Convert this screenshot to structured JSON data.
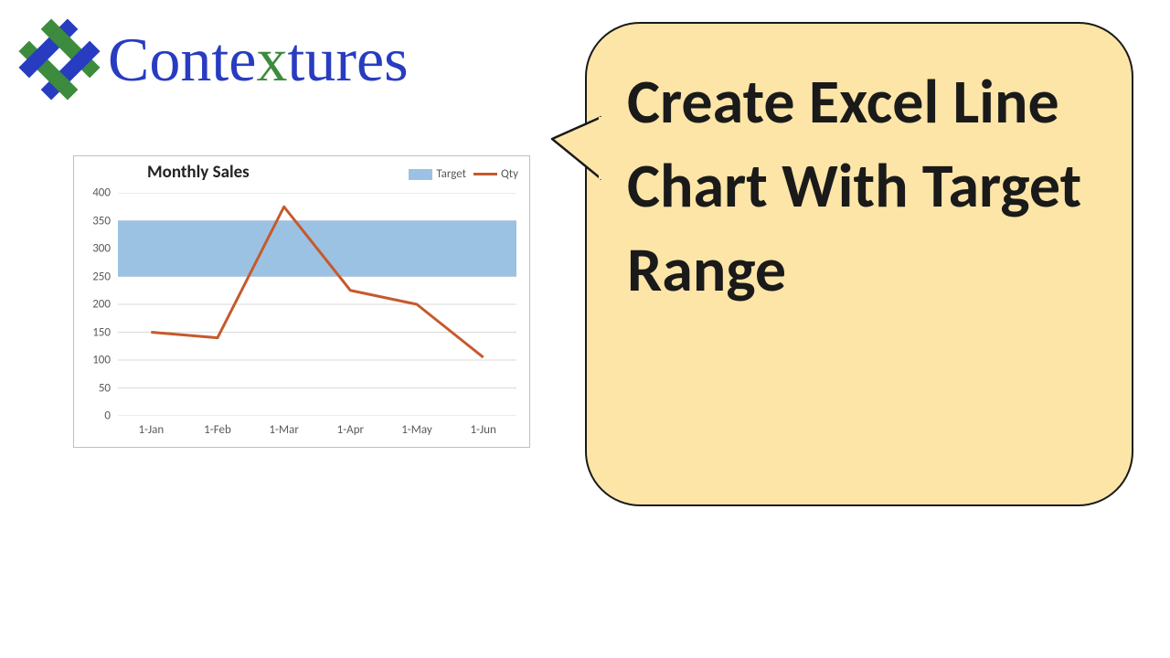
{
  "logo": {
    "text_before_x": "Conte",
    "text_x": "x",
    "text_after_x": "tures",
    "text_color": "#283cc1",
    "x_color": "#3d8b3d",
    "icon_blue": "#283cc1",
    "icon_green": "#3d8b3d"
  },
  "bubble": {
    "text": "Create Excel Line Chart With Target Range",
    "bg": "#fce5a7",
    "border": "#1a1a1a",
    "fontsize_pt": 50
  },
  "chart": {
    "type": "line_with_band",
    "title": "Monthly Sales",
    "title_fontsize": 19,
    "categories": [
      "1-Jan",
      "1-Feb",
      "1-Mar",
      "1-Apr",
      "1-May",
      "1-Jun"
    ],
    "qty_values": [
      150,
      140,
      375,
      225,
      200,
      105
    ],
    "target_low": 250,
    "target_high": 350,
    "ylim": [
      0,
      400
    ],
    "ytick_step": 50,
    "yticks": [
      0,
      50,
      100,
      150,
      200,
      250,
      300,
      350,
      400
    ],
    "line_color": "#c55a2c",
    "line_width": 3,
    "band_color": "#9bc2e3",
    "grid_color": "#d9d9d9",
    "axis_label_color": "#595959",
    "axis_fontsize": 13,
    "border_color": "#bfbfbf",
    "background_color": "#ffffff",
    "legend": {
      "items": [
        {
          "label": "Target",
          "type": "band",
          "color": "#9bc2e3"
        },
        {
          "label": "Qty",
          "type": "line",
          "color": "#c55a2c"
        }
      ]
    }
  }
}
